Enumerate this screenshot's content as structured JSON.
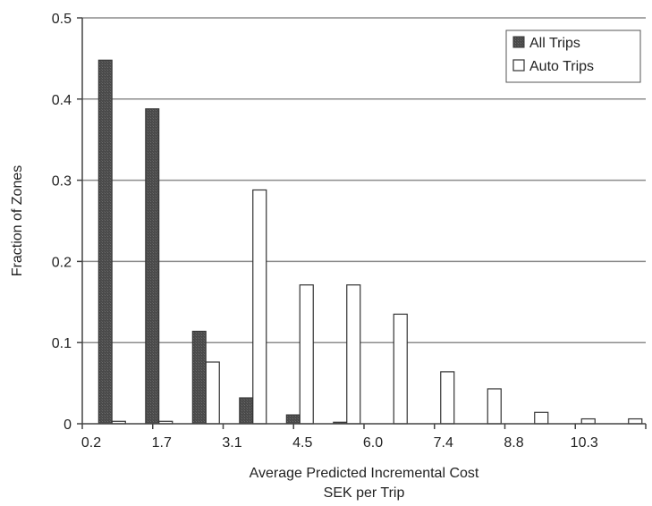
{
  "chart_data": {
    "type": "bar",
    "xlabel": [
      "Average Predicted Incremental Cost",
      "SEK per Trip"
    ],
    "ylabel": "Fraction of Zones",
    "ylim": [
      0,
      0.5
    ],
    "y_ticks": [
      "0",
      "0.1",
      "0.2",
      "0.3",
      "0.4",
      "0.5"
    ],
    "x_tick_labels": [
      "0.2",
      "1.7",
      "3.1",
      "4.5",
      "6.0",
      "7.4",
      "8.8",
      "10.3"
    ],
    "grid": "horizontal",
    "legend_position": "top-right",
    "categories": [
      "1",
      "2",
      "3",
      "4",
      "5",
      "6",
      "7",
      "8",
      "9",
      "10",
      "11",
      "12"
    ],
    "series": [
      {
        "name": "All Trips",
        "values": [
          0.448,
          0.388,
          0.114,
          0.032,
          0.011,
          0.002,
          0,
          0,
          0,
          0,
          0,
          0
        ],
        "color": "#555555",
        "pattern": "dark-hatched"
      },
      {
        "name": "Auto Trips",
        "values": [
          0.003,
          0.003,
          0.076,
          0.288,
          0.171,
          0.171,
          0.135,
          0.064,
          0.043,
          0.014,
          0.006,
          0.006
        ],
        "color": "#ffffff",
        "pattern": "outline"
      }
    ]
  }
}
